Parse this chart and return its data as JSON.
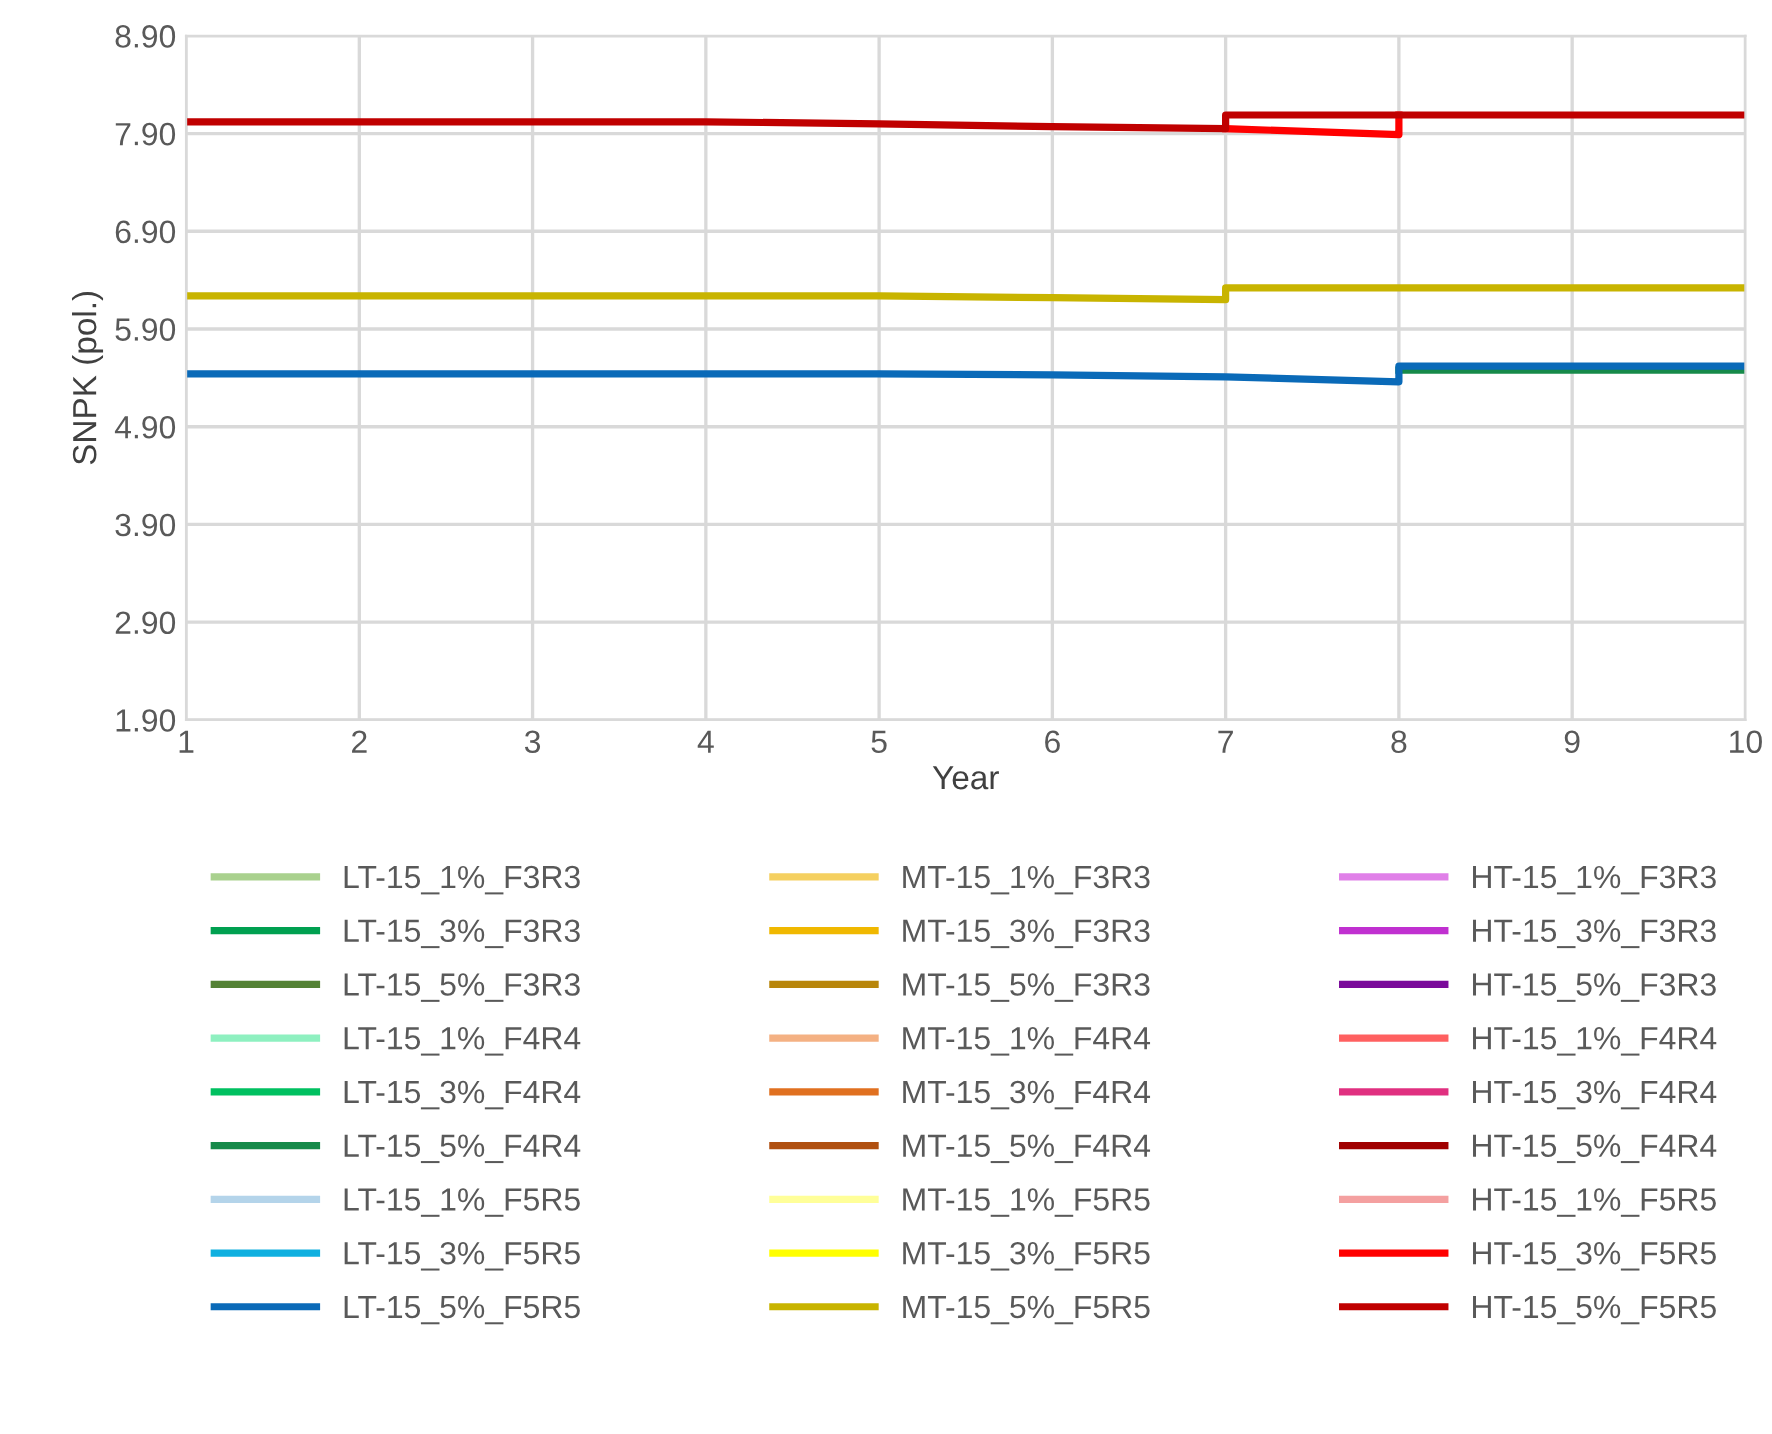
{
  "chart_data": {
    "type": "line",
    "xlabel": "Year",
    "ylabel": "SNPK (pol.)",
    "xlim": [
      1,
      10
    ],
    "xticks": [
      1,
      2,
      3,
      4,
      5,
      6,
      7,
      8,
      9,
      10
    ],
    "ylim": [
      1.9,
      8.9
    ],
    "yticks": [
      {
        "value": 1.9,
        "label": "1.90"
      },
      {
        "value": 2.9,
        "label": "2.90"
      },
      {
        "value": 3.9,
        "label": "3.90"
      },
      {
        "value": 4.9,
        "label": "4.90"
      },
      {
        "value": 5.9,
        "label": "5.90"
      },
      {
        "value": 6.9,
        "label": "6.90"
      },
      {
        "value": 7.9,
        "label": "7.90"
      },
      {
        "value": 8.9,
        "label": "8.90"
      }
    ],
    "grid": true,
    "legend": "bottom",
    "marker": "none",
    "line_style": "solid",
    "series": [
      {
        "name": "LT-15_1%_F3R3",
        "color": "#a9d18e",
        "values": [
          null,
          null,
          null,
          null,
          null,
          null,
          null,
          null,
          null,
          null
        ]
      },
      {
        "name": "LT-15_3%_F3R3",
        "color": "#00a050",
        "values": [
          null,
          null,
          null,
          null,
          null,
          null,
          null,
          null,
          null,
          null
        ]
      },
      {
        "name": "LT-15_5%_F3R3",
        "color": "#548235",
        "values": [
          null,
          null,
          null,
          null,
          null,
          null,
          null,
          null,
          null,
          null
        ]
      },
      {
        "name": "LT-15_1%_F4R4",
        "color": "#8ef0c0",
        "values": [
          null,
          null,
          null,
          null,
          null,
          null,
          null,
          null,
          null,
          null
        ]
      },
      {
        "name": "LT-15_3%_F4R4",
        "color": "#00c060",
        "values": [
          null,
          null,
          null,
          null,
          null,
          null,
          null,
          null,
          null,
          null
        ]
      },
      {
        "name": "LT-15_5%_F4R4",
        "color": "#168a4a",
        "x": [
          8,
          9,
          10
        ],
        "values": [
          5.48,
          5.48,
          5.48
        ]
      },
      {
        "name": "LT-15_1%_F5R5",
        "color": "#b4d4ea",
        "values": [
          null,
          null,
          null,
          null,
          null,
          null,
          null,
          null,
          null,
          null
        ]
      },
      {
        "name": "LT-15_3%_F5R5",
        "color": "#10b0e0",
        "values": [
          null,
          null,
          null,
          null,
          null,
          null,
          null,
          null,
          null,
          null
        ]
      },
      {
        "name": "LT-15_5%_F5R5",
        "color": "#0a6ab8",
        "x": [
          1,
          2,
          3,
          4,
          5,
          6,
          7,
          8,
          8,
          9,
          10
        ],
        "values": [
          5.44,
          5.44,
          5.44,
          5.44,
          5.44,
          5.43,
          5.41,
          5.36,
          5.52,
          5.52,
          5.52
        ]
      },
      {
        "name": "MT-15_1%_F3R3",
        "color": "#f5d060",
        "values": [
          null,
          null,
          null,
          null,
          null,
          null,
          null,
          null,
          null,
          null
        ]
      },
      {
        "name": "MT-15_3%_F3R3",
        "color": "#f0b800",
        "values": [
          null,
          null,
          null,
          null,
          null,
          null,
          null,
          null,
          null,
          null
        ]
      },
      {
        "name": "MT-15_5%_F3R3",
        "color": "#b8860b",
        "values": [
          null,
          null,
          null,
          null,
          null,
          null,
          null,
          null,
          null,
          null
        ]
      },
      {
        "name": "MT-15_1%_F4R4",
        "color": "#f4b183",
        "values": [
          null,
          null,
          null,
          null,
          null,
          null,
          null,
          null,
          null,
          null
        ]
      },
      {
        "name": "MT-15_3%_F4R4",
        "color": "#e07020",
        "values": [
          null,
          null,
          null,
          null,
          null,
          null,
          null,
          null,
          null,
          null
        ]
      },
      {
        "name": "MT-15_5%_F4R4",
        "color": "#b05010",
        "values": [
          null,
          null,
          null,
          null,
          null,
          null,
          null,
          null,
          null,
          null
        ]
      },
      {
        "name": "MT-15_1%_F5R5",
        "color": "#ffff99",
        "values": [
          null,
          null,
          null,
          null,
          null,
          null,
          null,
          null,
          null,
          null
        ]
      },
      {
        "name": "MT-15_3%_F5R5",
        "color": "#ffff00",
        "values": [
          null,
          null,
          null,
          null,
          null,
          null,
          null,
          null,
          null,
          null
        ]
      },
      {
        "name": "MT-15_5%_F5R5",
        "color": "#c8b400",
        "x": [
          1,
          2,
          3,
          4,
          5,
          6,
          7,
          7,
          8,
          9,
          10
        ],
        "values": [
          6.24,
          6.24,
          6.24,
          6.24,
          6.24,
          6.22,
          6.2,
          6.32,
          6.32,
          6.32,
          6.32
        ]
      },
      {
        "name": "HT-15_1%_F3R3",
        "color": "#e080e8",
        "values": [
          null,
          null,
          null,
          null,
          null,
          null,
          null,
          null,
          null,
          null
        ]
      },
      {
        "name": "HT-15_3%_F3R3",
        "color": "#c030d0",
        "values": [
          null,
          null,
          null,
          null,
          null,
          null,
          null,
          null,
          null,
          null
        ]
      },
      {
        "name": "HT-15_5%_F3R3",
        "color": "#7a0a9a",
        "values": [
          null,
          null,
          null,
          null,
          null,
          null,
          null,
          null,
          null,
          null
        ]
      },
      {
        "name": "HT-15_1%_F4R4",
        "color": "#ff6060",
        "values": [
          null,
          null,
          null,
          null,
          null,
          null,
          null,
          null,
          null,
          null
        ]
      },
      {
        "name": "HT-15_3%_F4R4",
        "color": "#e03080",
        "values": [
          null,
          null,
          null,
          null,
          null,
          null,
          null,
          null,
          null,
          null
        ]
      },
      {
        "name": "HT-15_5%_F4R4",
        "color": "#a00000",
        "values": [
          null,
          null,
          null,
          null,
          null,
          null,
          null,
          null,
          null,
          null
        ]
      },
      {
        "name": "HT-15_1%_F5R5",
        "color": "#f4a0a0",
        "values": [
          null,
          null,
          null,
          null,
          null,
          null,
          null,
          null,
          null,
          null
        ]
      },
      {
        "name": "HT-15_3%_F5R5",
        "color": "#ff0000",
        "x": [
          7,
          8,
          8
        ],
        "values": [
          7.95,
          7.89,
          8.09
        ]
      },
      {
        "name": "HT-15_5%_F5R5",
        "color": "#c00000",
        "x": [
          1,
          2,
          3,
          4,
          5,
          6,
          7,
          7,
          8,
          9,
          10
        ],
        "values": [
          8.02,
          8.02,
          8.02,
          8.02,
          8.0,
          7.97,
          7.95,
          8.09,
          8.09,
          8.09,
          8.09
        ]
      }
    ]
  }
}
